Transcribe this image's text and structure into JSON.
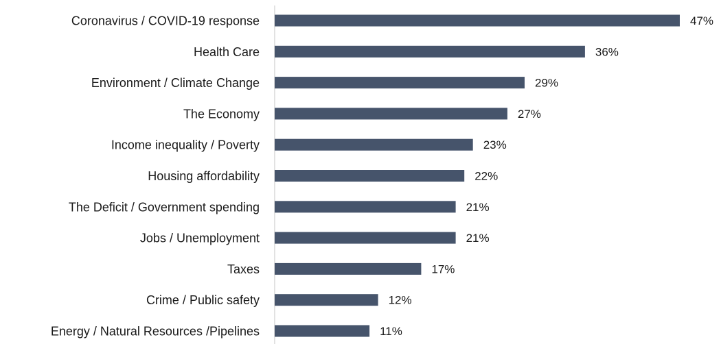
{
  "chart_data": {
    "type": "bar",
    "orientation": "horizontal",
    "categories": [
      "Coronavirus / COVID-19 response",
      "Health Care",
      "Environment / Climate Change",
      "The Economy",
      "Income inequality / Poverty",
      "Housing affordability",
      "The Deficit / Government spending",
      "Jobs / Unemployment",
      "Taxes",
      "Crime / Public safety",
      "Energy / Natural Resources /Pipelines"
    ],
    "values": [
      47,
      36,
      29,
      27,
      23,
      22,
      21,
      21,
      17,
      12,
      11
    ],
    "value_labels": [
      "47%",
      "36%",
      "29%",
      "27%",
      "23%",
      "22%",
      "21%",
      "21%",
      "17%",
      "12%",
      "11%"
    ],
    "unit": "%",
    "xlim": [
      0,
      47
    ],
    "grid": false,
    "legend": "none",
    "title": "",
    "xlabel": "",
    "ylabel": ""
  },
  "colors": {
    "bar": "#46546b",
    "axis": "#d9d9d9",
    "text": "#1a1a1a"
  }
}
